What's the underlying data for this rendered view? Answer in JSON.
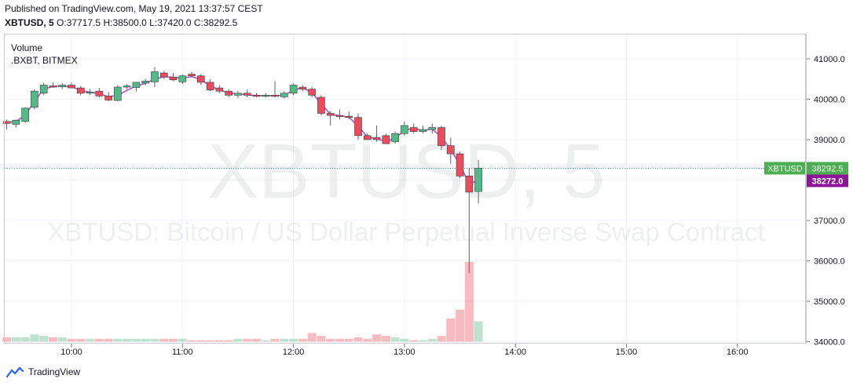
{
  "header": {
    "published": "Published on TradingView.com, May 19, 2021 13:37:57 CEST",
    "symbol": "XBTUSD, 5",
    "open_label": "O:",
    "open": "37717.5",
    "high_label": "H:",
    "high": "38500.0",
    "low_label": "L:",
    "low": "37420.0",
    "close_label": "C:",
    "close": "38292.5"
  },
  "pane": {
    "volume_label": "Volume",
    "index_label": ".BXBT, BITMEX"
  },
  "watermark": {
    "symbol": "XBTUSD, 5",
    "description": "XBTUSD: Bitcoin / US Dollar Perpetual Inverse Swap Contract"
  },
  "footer": {
    "brand": "TradingView",
    "brand_icon": "tradingview-logo-icon"
  },
  "colors": {
    "up": "#26a69a",
    "up_candle": "#53b987",
    "down": "#eb4d5c",
    "ma": "#9c27b0",
    "index_badge": "#8e1599",
    "price_badge": "#4caf50"
  },
  "chart_data": {
    "type": "candlestick",
    "interval": "5",
    "price_axis": {
      "ticks": [
        "34000.0",
        "35000.0",
        "36000.0",
        "37000.0",
        "38000.0",
        "39000.0",
        "40000.0",
        "41000.0"
      ],
      "range": [
        33900,
        41600
      ],
      "side": "right"
    },
    "time_axis": {
      "ticks": [
        "10:00",
        "11:00",
        "12:00",
        "13:00",
        "14:00",
        "15:00",
        "16:00"
      ],
      "start": "09:25",
      "end": "16:30"
    },
    "last_price": {
      "label": "XBTUSD",
      "value": "38292.5"
    },
    "index_price": {
      "value": "38272.0"
    },
    "grid": true,
    "candles": [
      {
        "t": "09:25",
        "o": 39450,
        "h": 39500,
        "l": 39250,
        "c": 39400
      },
      {
        "t": "09:30",
        "o": 39380,
        "h": 39500,
        "l": 39300,
        "c": 39480
      },
      {
        "t": "09:35",
        "o": 39450,
        "h": 39800,
        "l": 39420,
        "c": 39780
      },
      {
        "t": "09:40",
        "o": 39800,
        "h": 40250,
        "l": 39750,
        "c": 40200
      },
      {
        "t": "09:45",
        "o": 40150,
        "h": 40400,
        "l": 40100,
        "c": 40350
      },
      {
        "t": "09:50",
        "o": 40330,
        "h": 40420,
        "l": 40280,
        "c": 40300
      },
      {
        "t": "09:55",
        "o": 40310,
        "h": 40400,
        "l": 40250,
        "c": 40350
      },
      {
        "t": "10:00",
        "o": 40350,
        "h": 40420,
        "l": 40270,
        "c": 40280
      },
      {
        "t": "10:05",
        "o": 40280,
        "h": 40330,
        "l": 40100,
        "c": 40150
      },
      {
        "t": "10:10",
        "o": 40150,
        "h": 40250,
        "l": 40100,
        "c": 40180
      },
      {
        "t": "10:15",
        "o": 40200,
        "h": 40280,
        "l": 40050,
        "c": 40080
      },
      {
        "t": "10:20",
        "o": 40080,
        "h": 40180,
        "l": 39950,
        "c": 39980
      },
      {
        "t": "10:25",
        "o": 39970,
        "h": 40350,
        "l": 39950,
        "c": 40300
      },
      {
        "t": "10:30",
        "o": 40300,
        "h": 40380,
        "l": 40250,
        "c": 40330
      },
      {
        "t": "10:35",
        "o": 40290,
        "h": 40430,
        "l": 40190,
        "c": 40420
      },
      {
        "t": "10:40",
        "o": 40400,
        "h": 40500,
        "l": 40350,
        "c": 40450
      },
      {
        "t": "10:45",
        "o": 40430,
        "h": 40800,
        "l": 40300,
        "c": 40680
      },
      {
        "t": "10:50",
        "o": 40650,
        "h": 40700,
        "l": 40500,
        "c": 40550
      },
      {
        "t": "10:55",
        "o": 40550,
        "h": 40650,
        "l": 40450,
        "c": 40480
      },
      {
        "t": "11:00",
        "o": 40430,
        "h": 40620,
        "l": 40380,
        "c": 40580
      },
      {
        "t": "11:05",
        "o": 40620,
        "h": 40680,
        "l": 40550,
        "c": 40580
      },
      {
        "t": "11:10",
        "o": 40580,
        "h": 40620,
        "l": 40350,
        "c": 40420
      },
      {
        "t": "11:15",
        "o": 40420,
        "h": 40500,
        "l": 40200,
        "c": 40230
      },
      {
        "t": "11:20",
        "o": 40280,
        "h": 40350,
        "l": 40150,
        "c": 40200
      },
      {
        "t": "11:25",
        "o": 40200,
        "h": 40250,
        "l": 40050,
        "c": 40100
      },
      {
        "t": "11:30",
        "o": 40100,
        "h": 40200,
        "l": 40030,
        "c": 40150
      },
      {
        "t": "11:35",
        "o": 40150,
        "h": 40250,
        "l": 40050,
        "c": 40100
      },
      {
        "t": "11:40",
        "o": 40100,
        "h": 40150,
        "l": 40050,
        "c": 40080
      },
      {
        "t": "11:45",
        "o": 40080,
        "h": 40150,
        "l": 40050,
        "c": 40100
      },
      {
        "t": "11:50",
        "o": 40100,
        "h": 40450,
        "l": 40050,
        "c": 40080
      },
      {
        "t": "11:55",
        "o": 40060,
        "h": 40200,
        "l": 40020,
        "c": 40150
      },
      {
        "t": "12:00",
        "o": 40150,
        "h": 40400,
        "l": 40100,
        "c": 40350
      },
      {
        "t": "12:05",
        "o": 40300,
        "h": 40350,
        "l": 40200,
        "c": 40250
      },
      {
        "t": "12:10",
        "o": 40250,
        "h": 40300,
        "l": 40050,
        "c": 40100
      },
      {
        "t": "12:15",
        "o": 40050,
        "h": 40100,
        "l": 39600,
        "c": 39650
      },
      {
        "t": "12:20",
        "o": 39650,
        "h": 39700,
        "l": 39350,
        "c": 39600
      },
      {
        "t": "12:25",
        "o": 39600,
        "h": 39750,
        "l": 39500,
        "c": 39580
      },
      {
        "t": "12:30",
        "o": 39580,
        "h": 39700,
        "l": 39500,
        "c": 39550
      },
      {
        "t": "12:35",
        "o": 39550,
        "h": 39650,
        "l": 39000,
        "c": 39100
      },
      {
        "t": "12:40",
        "o": 39100,
        "h": 39150,
        "l": 39000,
        "c": 39000
      },
      {
        "t": "12:45",
        "o": 39050,
        "h": 39350,
        "l": 38950,
        "c": 39000
      },
      {
        "t": "12:50",
        "o": 39100,
        "h": 39150,
        "l": 38900,
        "c": 38900
      },
      {
        "t": "12:55",
        "o": 38950,
        "h": 39200,
        "l": 38900,
        "c": 39150
      },
      {
        "t": "13:00",
        "o": 39150,
        "h": 39450,
        "l": 39100,
        "c": 39350
      },
      {
        "t": "13:05",
        "o": 39300,
        "h": 39400,
        "l": 39150,
        "c": 39200
      },
      {
        "t": "13:10",
        "o": 39200,
        "h": 39350,
        "l": 39150,
        "c": 39250
      },
      {
        "t": "13:15",
        "o": 39250,
        "h": 39400,
        "l": 39150,
        "c": 39300
      },
      {
        "t": "13:20",
        "o": 39300,
        "h": 39350,
        "l": 38750,
        "c": 38850
      },
      {
        "t": "13:25",
        "o": 38850,
        "h": 39050,
        "l": 38400,
        "c": 38650
      },
      {
        "t": "13:30",
        "o": 38650,
        "h": 38700,
        "l": 38050,
        "c": 38100
      },
      {
        "t": "13:35",
        "o": 38100,
        "h": 38300,
        "l": 35700,
        "c": 37700
      },
      {
        "t": "13:40",
        "o": 37717.5,
        "h": 38500,
        "l": 37420,
        "c": 38292.5
      }
    ],
    "volume_relative": [
      3,
      3,
      3,
      5,
      4,
      3,
      3,
      2,
      2,
      2,
      2,
      2,
      2,
      2,
      2,
      2,
      2,
      2,
      2,
      2,
      1,
      1,
      1,
      1,
      1,
      2,
      2,
      2,
      1,
      2,
      2,
      2,
      2,
      6,
      4,
      2,
      2,
      2,
      3,
      2,
      5,
      4,
      3,
      2,
      1,
      1,
      2,
      4,
      16,
      22,
      55,
      14
    ],
    "moving_average": [
      39420,
      39450,
      39600,
      39950,
      40250,
      40320,
      40320,
      40310,
      40220,
      40170,
      40140,
      40060,
      40100,
      40220,
      40330,
      40390,
      40500,
      40560,
      40540,
      40520,
      40560,
      40490,
      40330,
      40230,
      40160,
      40130,
      40110,
      40090,
      40090,
      40090,
      40100,
      40230,
      40280,
      40170,
      39880,
      39630,
      39590,
      39560,
      39330,
      39070,
      39020,
      38960,
      39030,
      39240,
      39270,
      39230,
      39260,
      39070,
      38760,
      38380,
      37900,
      38000
    ]
  }
}
